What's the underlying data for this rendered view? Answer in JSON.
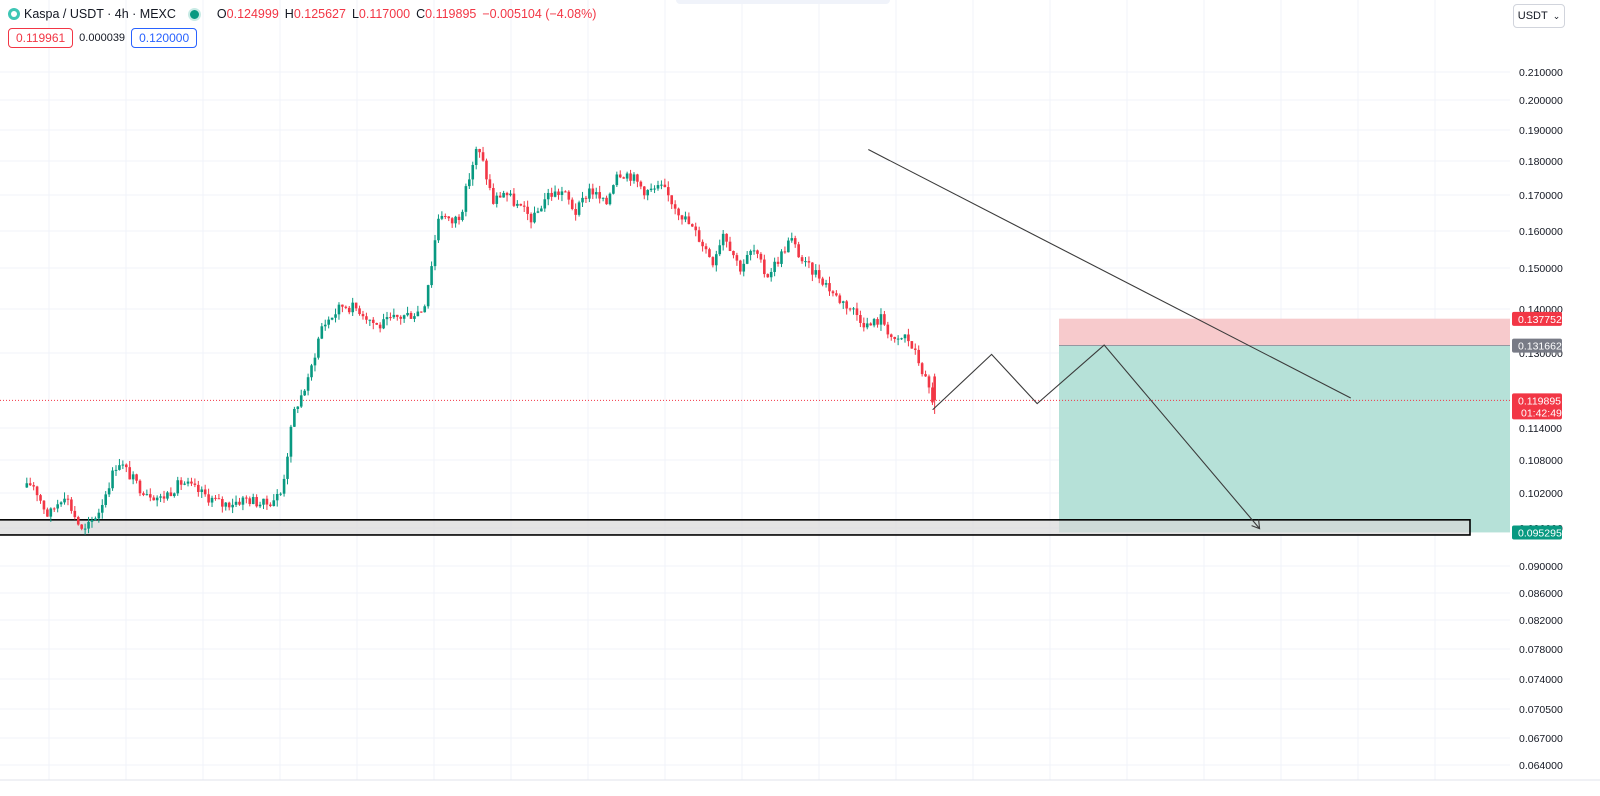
{
  "legend": {
    "symbol": "Kaspa / USDT · 4h · MEXC",
    "open_label": "O",
    "open": "0.124999",
    "high_label": "H",
    "high": "0.125627",
    "low_label": "L",
    "low": "0.117000",
    "close_label": "C",
    "close": "0.119895",
    "change": "−0.005104 (−4.08%)"
  },
  "quote": {
    "bid": "0.119961",
    "spread": "0.000039",
    "ask": "0.120000"
  },
  "currency_selector": {
    "label": "USDT",
    "icon": "chevron-down-icon"
  },
  "colors": {
    "up": "#089981",
    "down": "#f23645",
    "grid": "#f0f3fa",
    "stop_zone": "#f7c7c9",
    "target_zone": "#b2dfd6",
    "support_zone": "#d9d9d9"
  },
  "chart_data": {
    "type": "candlestick",
    "ylim": [
      0.0625,
      0.2155
    ],
    "y_ticks": [
      "0.210000",
      "0.200000",
      "0.190000",
      "0.180000",
      "0.170000",
      "0.160000",
      "0.150000",
      "0.140000",
      "0.130000",
      "0.114000",
      "0.108000",
      "0.102000",
      "0.096000",
      "0.090000",
      "0.086000",
      "0.082000",
      "0.078000",
      "0.074000",
      "0.070500",
      "0.067000",
      "0.064000"
    ],
    "price_markers": [
      {
        "label": "0.137752",
        "color": "#f23645"
      },
      {
        "label": "0.131662",
        "color": "#787b86"
      },
      {
        "label": "0.119895",
        "sublabel": "01:42:49",
        "color": "#f23645"
      },
      {
        "label": "0.095295",
        "color": "#089981"
      }
    ],
    "price_path": [
      [
        0.103,
        0.1
      ],
      [
        0.104,
        0.12
      ],
      [
        0.098,
        0.18
      ],
      [
        0.102,
        0.24
      ],
      [
        0.095,
        0.31
      ],
      [
        0.099,
        0.37
      ],
      [
        0.108,
        0.44
      ],
      [
        0.103,
        0.52
      ],
      [
        0.101,
        0.6
      ],
      [
        0.104,
        0.68
      ],
      [
        0.102,
        0.75
      ],
      [
        0.1,
        0.83
      ],
      [
        0.101,
        0.92
      ],
      [
        0.1,
        0.99
      ],
      [
        0.102,
        1.05
      ],
      [
        0.118,
        1.1
      ],
      [
        0.124,
        1.15
      ],
      [
        0.136,
        1.2
      ],
      [
        0.141,
        1.28
      ],
      [
        0.14,
        1.34
      ],
      [
        0.136,
        1.41
      ],
      [
        0.138,
        1.48
      ],
      [
        0.139,
        1.54
      ],
      [
        0.14,
        1.58
      ],
      [
        0.151,
        1.61
      ],
      [
        0.166,
        1.64
      ],
      [
        0.162,
        1.68
      ],
      [
        0.165,
        1.72
      ],
      [
        0.175,
        1.75
      ],
      [
        0.184,
        1.78
      ],
      [
        0.18,
        1.8
      ],
      [
        0.168,
        1.84
      ],
      [
        0.171,
        1.88
      ],
      [
        0.167,
        1.93
      ],
      [
        0.163,
        1.99
      ],
      [
        0.17,
        2.04
      ],
      [
        0.171,
        2.1
      ],
      [
        0.165,
        2.15
      ],
      [
        0.172,
        2.2
      ],
      [
        0.167,
        2.26
      ],
      [
        0.177,
        2.3
      ],
      [
        0.176,
        2.35
      ],
      [
        0.171,
        2.41
      ],
      [
        0.172,
        2.47
      ],
      [
        0.165,
        2.54
      ],
      [
        0.158,
        2.61
      ],
      [
        0.152,
        2.66
      ],
      [
        0.16,
        2.7
      ],
      [
        0.15,
        2.76
      ],
      [
        0.155,
        2.81
      ],
      [
        0.148,
        2.86
      ],
      [
        0.153,
        2.91
      ],
      [
        0.158,
        2.95
      ],
      [
        0.151,
        3.0
      ],
      [
        0.148,
        3.06
      ],
      [
        0.143,
        3.12
      ],
      [
        0.14,
        3.18
      ],
      [
        0.136,
        3.24
      ],
      [
        0.138,
        3.29
      ],
      [
        0.132,
        3.34
      ],
      [
        0.134,
        3.38
      ],
      [
        0.128,
        3.43
      ],
      [
        0.12,
        3.48
      ]
    ],
    "projection_path": [
      [
        0.1179,
        3.48
      ],
      [
        0.1297,
        3.7
      ],
      [
        0.1192,
        3.87
      ],
      [
        0.1318,
        4.12
      ],
      [
        0.0959,
        4.7
      ]
    ],
    "trendline": {
      "from": [
        0.1837,
        3.24
      ],
      "to": [
        0.1204,
        5.04
      ]
    },
    "zones": {
      "stop": {
        "from": 0.1378,
        "to": 0.1317
      },
      "target": {
        "from": 0.1317,
        "to": 0.0953
      },
      "support": {
        "from": 0.0974,
        "to": 0.0949
      }
    }
  }
}
